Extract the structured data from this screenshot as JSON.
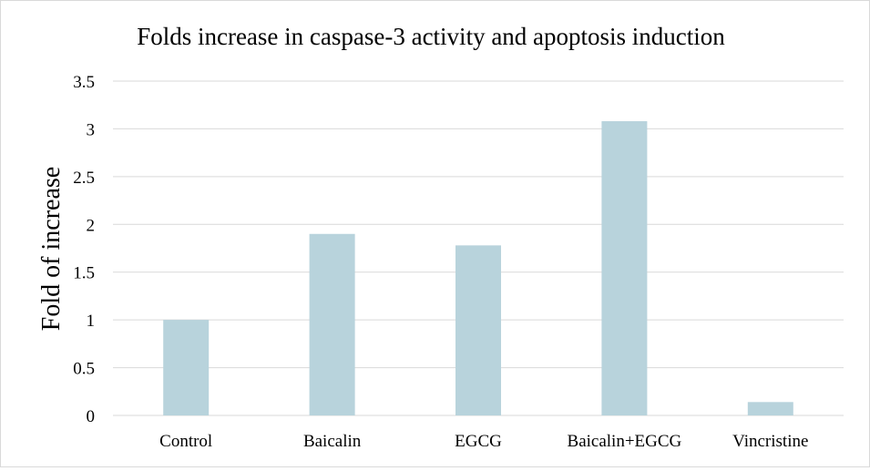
{
  "chart_data": {
    "type": "bar",
    "title": "Folds increase in caspase-3 activity and apoptosis induction",
    "xlabel": "",
    "ylabel": "Fold of increase",
    "categories": [
      "Control",
      "Baicalin",
      "EGCG",
      "Baicalin+EGCG",
      "Vincristine"
    ],
    "values": [
      1.0,
      1.9,
      1.78,
      3.08,
      0.14
    ],
    "ylim": [
      0,
      3.5
    ],
    "yticks": [
      "0",
      "0.5",
      "1",
      "1.5",
      "2",
      "2.5",
      "3",
      "3.5"
    ],
    "grid": true,
    "legend": "none",
    "bar_color": "#b8d3dc"
  }
}
